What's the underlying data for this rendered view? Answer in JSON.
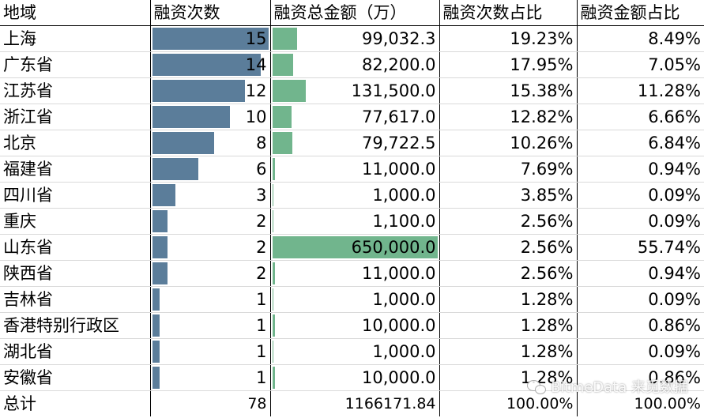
{
  "headers": [
    "地域",
    "融资次数",
    "融资总金额（万）",
    "融资次数占比",
    "融资金额占比"
  ],
  "colors": {
    "count_bar": "#5b7d9a",
    "amount_bar": "#71b58d"
  },
  "max_count": 15,
  "max_amount": 650000,
  "rows": [
    {
      "region": "上海",
      "count": 15,
      "amount": "99,032.3",
      "amount_value": 99032.3,
      "count_pct": "19.23%",
      "amount_pct": "8.49%"
    },
    {
      "region": "广东省",
      "count": 14,
      "amount": "82,200.0",
      "amount_value": 82200,
      "count_pct": "17.95%",
      "amount_pct": "7.05%"
    },
    {
      "region": "江苏省",
      "count": 12,
      "amount": "131,500.0",
      "amount_value": 131500,
      "count_pct": "15.38%",
      "amount_pct": "11.28%"
    },
    {
      "region": "浙江省",
      "count": 10,
      "amount": "77,617.0",
      "amount_value": 77617,
      "count_pct": "12.82%",
      "amount_pct": "6.66%"
    },
    {
      "region": "北京",
      "count": 8,
      "amount": "79,722.5",
      "amount_value": 79722.5,
      "count_pct": "10.26%",
      "amount_pct": "6.84%"
    },
    {
      "region": "福建省",
      "count": 6,
      "amount": "11,000.0",
      "amount_value": 11000,
      "count_pct": "7.69%",
      "amount_pct": "0.94%"
    },
    {
      "region": "四川省",
      "count": 3,
      "amount": "1,000.0",
      "amount_value": 1000,
      "count_pct": "3.85%",
      "amount_pct": "0.09%"
    },
    {
      "region": "重庆",
      "count": 2,
      "amount": "1,100.0",
      "amount_value": 1100,
      "count_pct": "2.56%",
      "amount_pct": "0.09%"
    },
    {
      "region": "山东省",
      "count": 2,
      "amount": "650,000.0",
      "amount_value": 650000,
      "count_pct": "2.56%",
      "amount_pct": "55.74%"
    },
    {
      "region": "陕西省",
      "count": 2,
      "amount": "11,000.0",
      "amount_value": 11000,
      "count_pct": "2.56%",
      "amount_pct": "0.94%"
    },
    {
      "region": "吉林省",
      "count": 1,
      "amount": "1,000.0",
      "amount_value": 1000,
      "count_pct": "1.28%",
      "amount_pct": "0.09%"
    },
    {
      "region": "香港特别行政区",
      "count": 1,
      "amount": "10,000.0",
      "amount_value": 10000,
      "count_pct": "1.28%",
      "amount_pct": "0.86%"
    },
    {
      "region": "湖北省",
      "count": 1,
      "amount": "1,000.0",
      "amount_value": 1000,
      "count_pct": "1.28%",
      "amount_pct": "0.09%"
    },
    {
      "region": "安徽省",
      "count": 1,
      "amount": "10,000.0",
      "amount_value": 10000,
      "count_pct": "1.28%",
      "amount_pct": "0.86%"
    }
  ],
  "total": {
    "label": "总计",
    "count": "78",
    "amount": "1166171.84",
    "count_pct": "100.00%",
    "amount_pct": "100.00%"
  },
  "watermark": {
    "text": "BitmeData 来觅数据",
    "icon": "wechat-icon"
  }
}
